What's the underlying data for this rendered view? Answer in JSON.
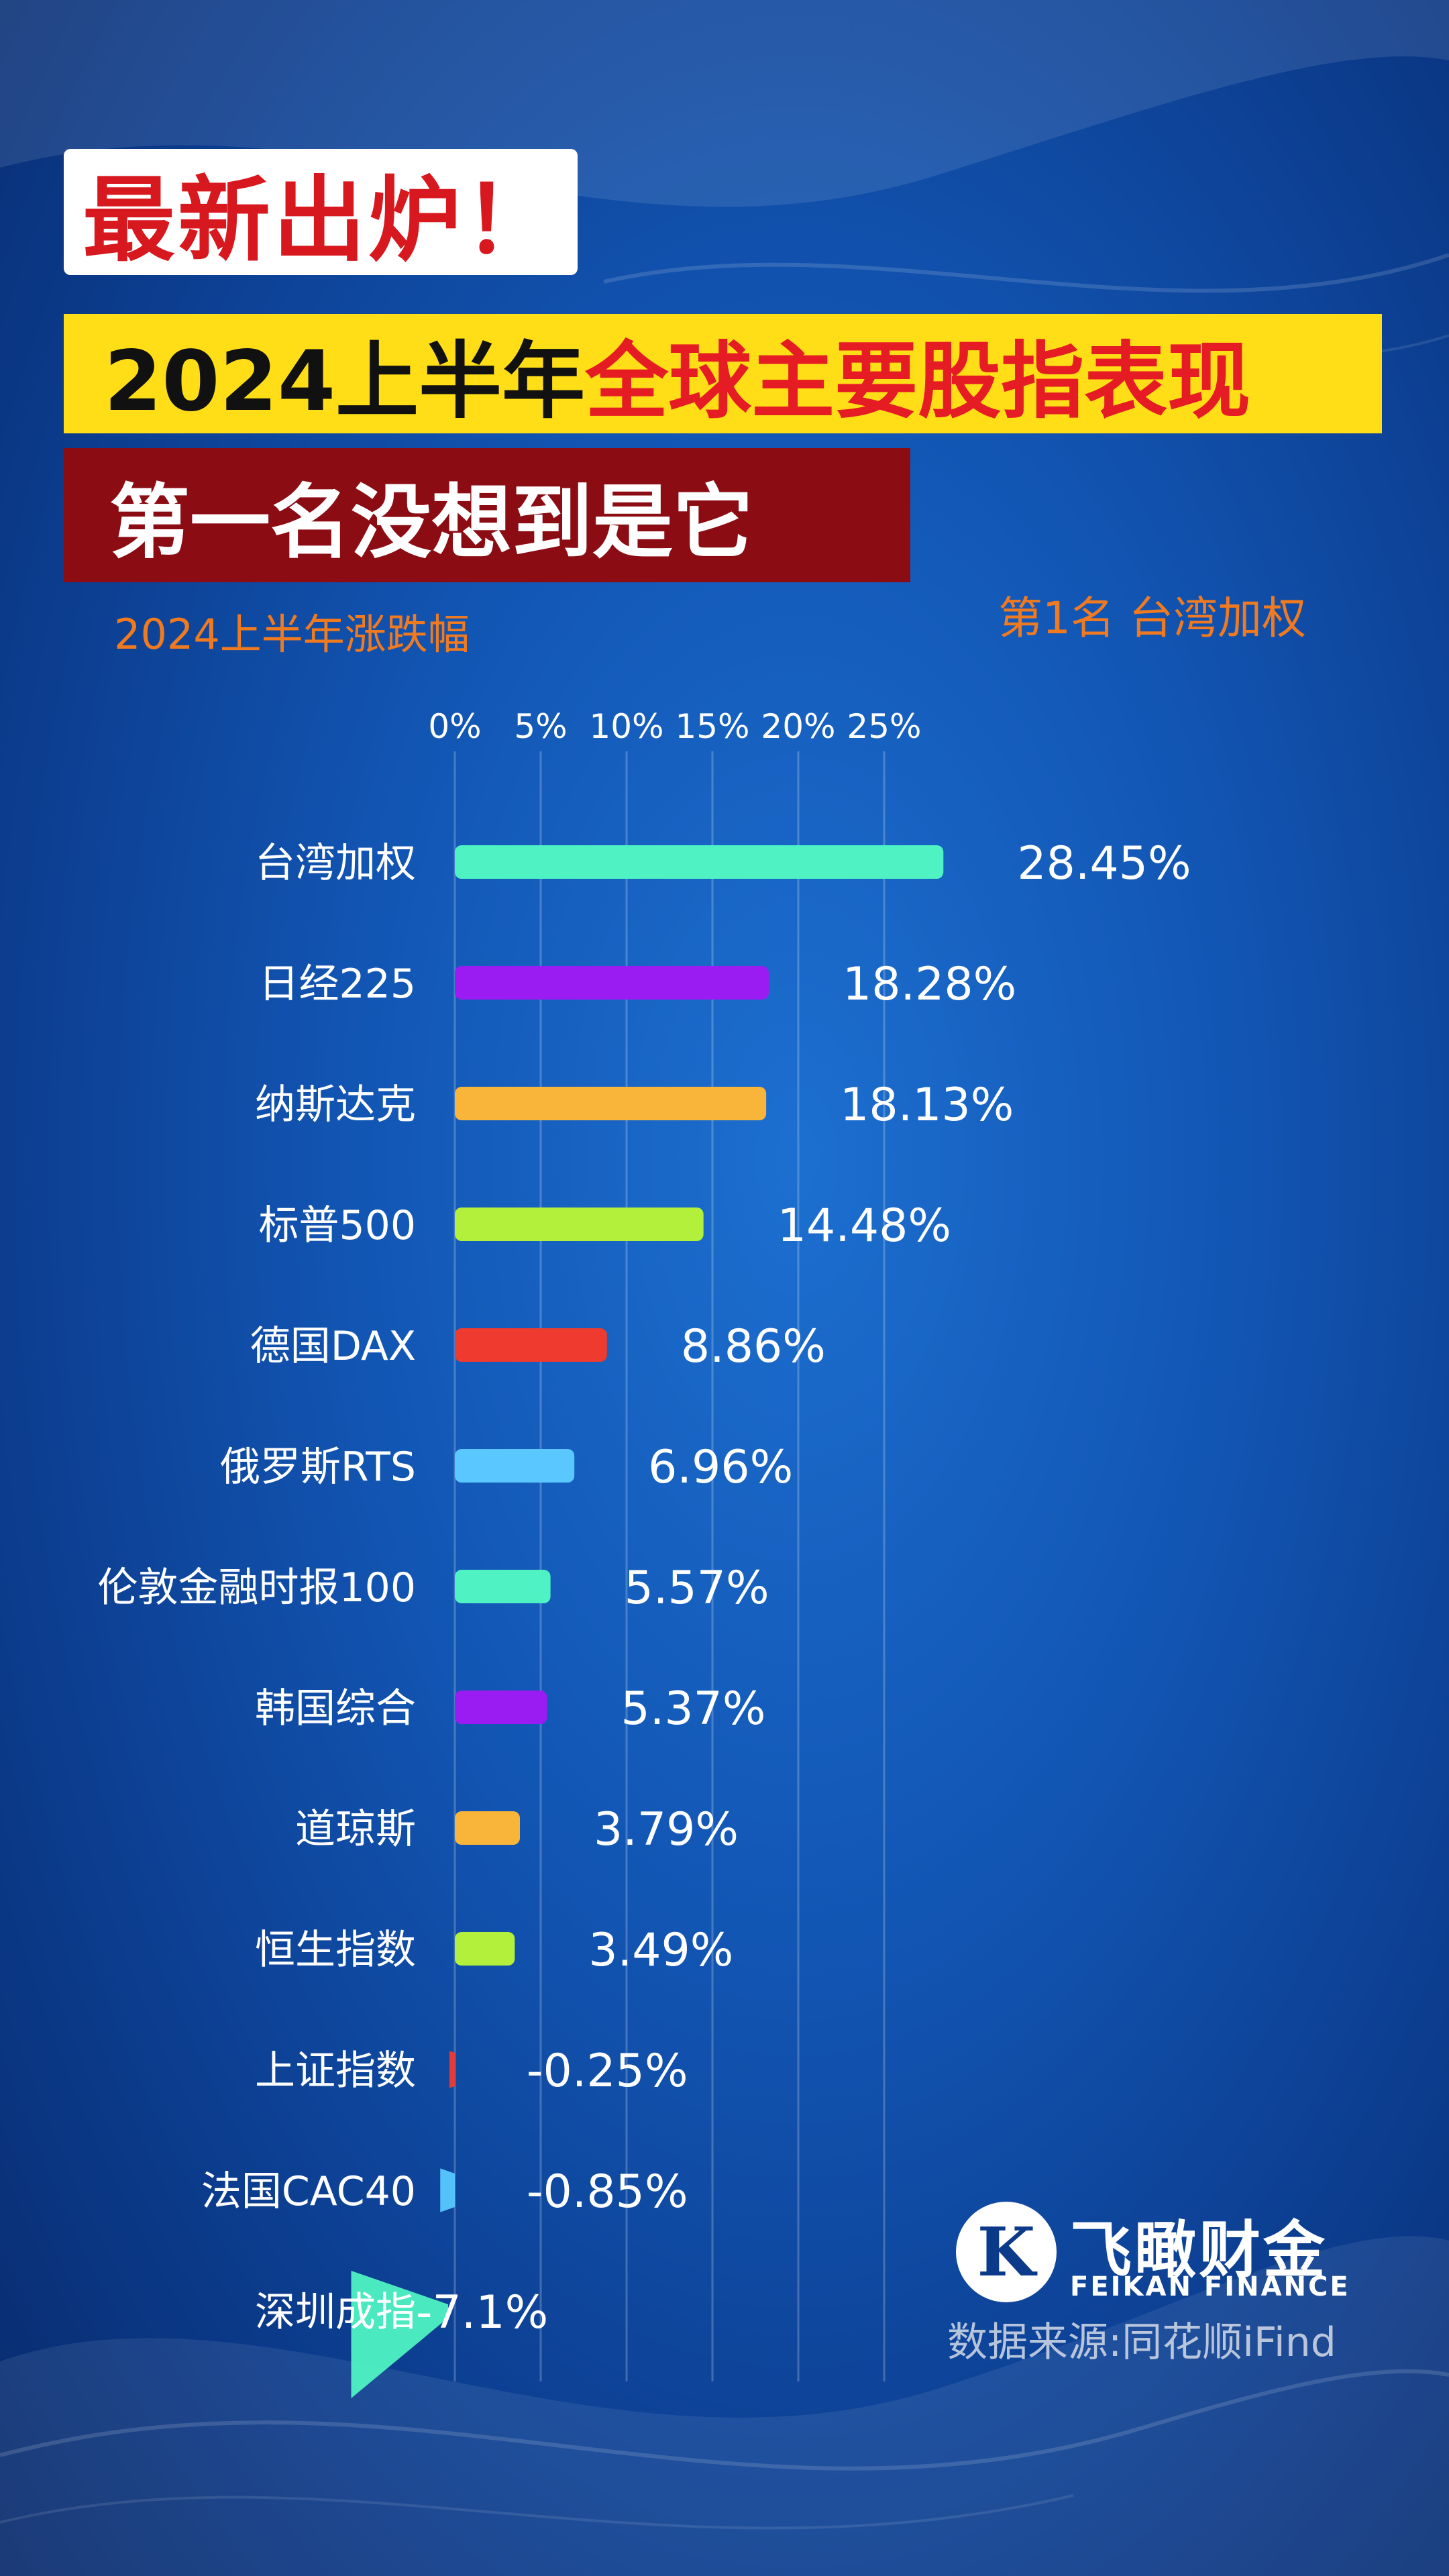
{
  "header": {
    "badge1": "最新出炉！",
    "badge2_part1": "2024上半年",
    "badge2_part2": "全球主要股指表现",
    "badge3": "第一名没想到是它"
  },
  "subtitle": "2024上半年涨跌幅",
  "rank_label": "第1名 台湾加权",
  "logo": {
    "cn": "飞瞰财金",
    "en": "FEIKAN FINANCE",
    "mark": "K"
  },
  "source": "数据来源:同花顺iFind",
  "colors": {
    "red": "#d7191f",
    "yellow": "#ffde17",
    "darkred": "#8c0c14",
    "orange": "#f07a20"
  },
  "chart_data": {
    "type": "bar",
    "orientation": "horizontal",
    "x_ticks": [
      "0%",
      "5%",
      "10%",
      "15%",
      "20%",
      "25%"
    ],
    "xlim": [
      0,
      25
    ],
    "grid": true,
    "categories": [
      "台湾加权",
      "日经225",
      "纳斯达克",
      "标普500",
      "德国DAX",
      "俄罗斯RTS",
      "伦敦金融时报100",
      "韩国综合",
      "道琼斯",
      "恒生指数",
      "上证指数",
      "法国CAC40",
      "深圳成指"
    ],
    "values": [
      28.45,
      18.28,
      18.13,
      14.48,
      8.86,
      6.96,
      5.57,
      5.37,
      3.79,
      3.49,
      -0.25,
      -0.85,
      -7.1
    ],
    "value_labels": [
      "28.45%",
      "18.28%",
      "18.13%",
      "14.48%",
      "8.86%",
      "6.96%",
      "5.57%",
      "5.37%",
      "3.79%",
      "3.49%",
      "-0.25%",
      "-0.85%",
      "-7.1%"
    ],
    "bar_colors": [
      "#4ff2c2",
      "#9a1cf2",
      "#f9b43a",
      "#b3f03c",
      "#ef3b2f",
      "#5ac8ff",
      "#4ff2c2",
      "#9a1cf2",
      "#f9b43a",
      "#b3f03c",
      "#ef3b2f",
      "#5ac8ff",
      "#4ff2c2"
    ]
  }
}
